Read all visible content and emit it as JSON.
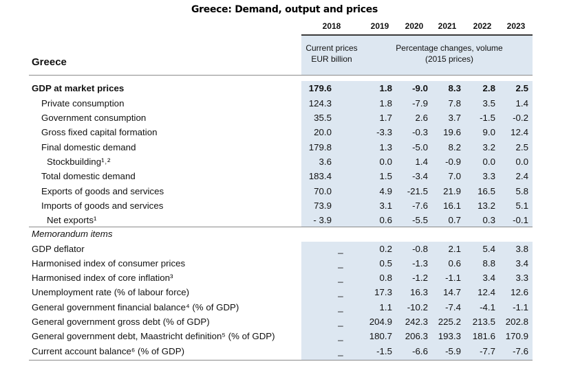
{
  "title": "Greece: Demand, output and prices",
  "years": [
    "2018",
    "2019",
    "2020",
    "2021",
    "2022",
    "2023"
  ],
  "col_header_current": [
    "Current prices",
    "EUR billion"
  ],
  "col_header_pct": [
    "Percentage changes, volume",
    "(2015 prices)"
  ],
  "country": "Greece",
  "rows": [
    {
      "label": "GDP at market prices",
      "indent": 0,
      "bold": true,
      "base": "179.6",
      "values": [
        "1.8",
        "-9.0",
        "8.3",
        "2.8",
        "2.5"
      ]
    },
    {
      "label": "Private consumption",
      "indent": 1,
      "base": "124.3",
      "values": [
        "1.8",
        "-7.9",
        "7.8",
        "3.5",
        "1.4"
      ]
    },
    {
      "label": "Government consumption",
      "indent": 1,
      "base": "35.5",
      "values": [
        "1.7",
        "2.6",
        "3.7",
        "-1.5",
        "-0.2"
      ]
    },
    {
      "label": "Gross fixed capital formation",
      "indent": 1,
      "base": "20.0",
      "values": [
        "-3.3",
        "-0.3",
        "19.6",
        "9.0",
        "12.4"
      ]
    },
    {
      "label": "Final domestic demand",
      "indent": 1,
      "base": "179.8",
      "values": [
        "1.3",
        "-5.0",
        "8.2",
        "3.2",
        "2.5"
      ]
    },
    {
      "label": "Stockbuilding¹˒²",
      "indent": 2,
      "base": "3.6",
      "values": [
        "0.0",
        "1.4",
        "-0.9",
        "0.0",
        "0.0"
      ]
    },
    {
      "label": "Total domestic demand",
      "indent": 1,
      "base": "183.4",
      "values": [
        "1.5",
        "-3.4",
        "7.0",
        "3.3",
        "2.4"
      ]
    },
    {
      "label": "Exports of goods and services",
      "indent": 1,
      "base": "70.0",
      "values": [
        "4.9",
        "-21.5",
        "21.9",
        "16.5",
        "5.8"
      ]
    },
    {
      "label": "Imports of goods and services",
      "indent": 1,
      "base": "73.9",
      "values": [
        "3.1",
        "-7.6",
        "16.1",
        "13.2",
        "5.1"
      ]
    },
    {
      "label": "Net exports¹",
      "indent": 2,
      "base": "- 3.9",
      "values": [
        "0.6",
        "-5.5",
        "0.7",
        "0.3",
        "-0.1"
      ]
    }
  ],
  "memo_title": "Memorandum items",
  "memo_rows": [
    {
      "label": "GDP deflator",
      "base": "_",
      "values": [
        "0.2",
        "-0.8",
        "2.1",
        "5.4",
        "3.8"
      ]
    },
    {
      "label": "Harmonised index of consumer prices",
      "base": "_",
      "values": [
        "0.5",
        "-1.3",
        "0.6",
        "8.8",
        "3.4"
      ]
    },
    {
      "label": "Harmonised index of core inflation³",
      "base": "_",
      "values": [
        "0.8",
        "-1.2",
        "-1.1",
        "3.4",
        "3.3"
      ]
    },
    {
      "label": "Unemployment rate (% of labour force)",
      "base": "_",
      "values": [
        "17.3",
        "16.3",
        "14.7",
        "12.4",
        "12.6"
      ]
    },
    {
      "label": "General government financial balance⁴ (% of GDP)",
      "base": "_",
      "values": [
        "1.1",
        "-10.2",
        "-7.4",
        "-4.1",
        "-1.1"
      ]
    },
    {
      "label": "General government gross debt (% of GDP)",
      "base": "_",
      "values": [
        "204.9",
        "242.3",
        "225.2",
        "213.5",
        "202.8"
      ]
    },
    {
      "label": "General government debt, Maastricht definition⁵ (% of GDP)",
      "base": "_",
      "values": [
        "180.7",
        "206.3",
        "193.3",
        "181.6",
        "170.9"
      ]
    },
    {
      "label": "Current account balance⁶ (% of GDP)",
      "base": "_",
      "values": [
        "-1.5",
        "-6.6",
        "-5.9",
        "-7.7",
        "-7.6"
      ]
    }
  ]
}
